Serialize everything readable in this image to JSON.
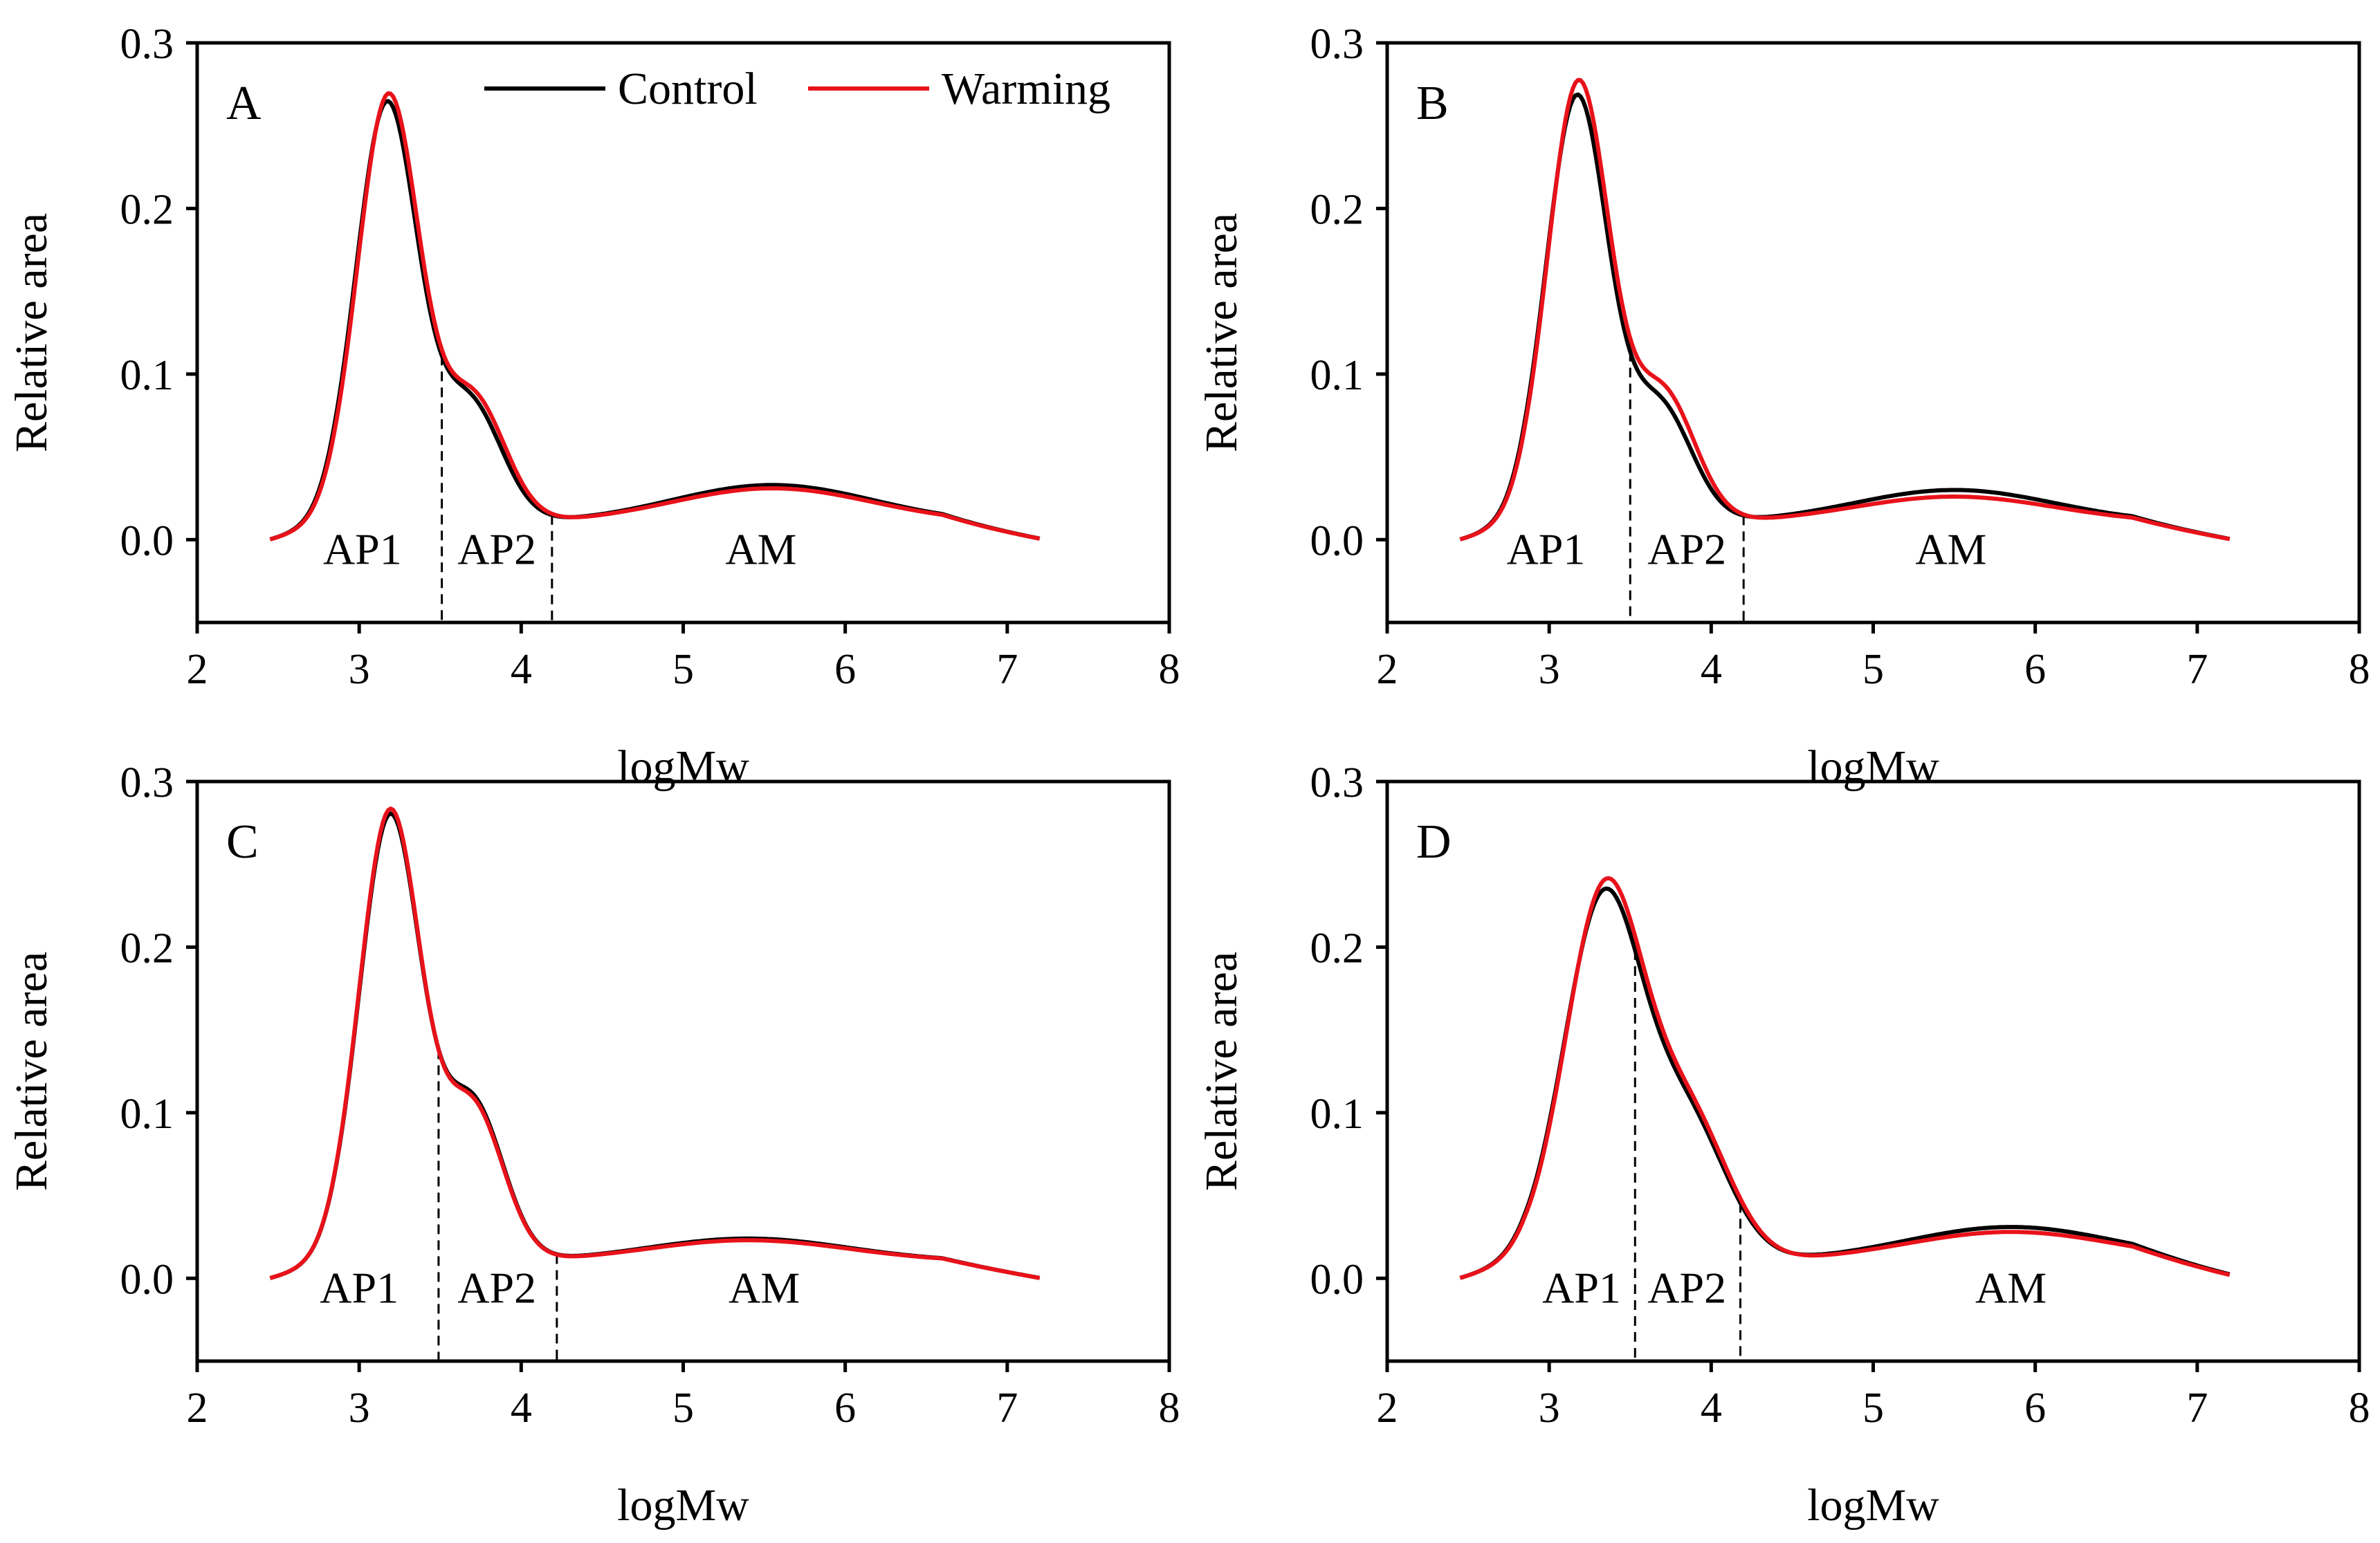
{
  "colors": {
    "control": "#000000",
    "warming": "#e8121a"
  },
  "legend": {
    "control_label": "Control",
    "warming_label": "Warming"
  },
  "chart_data": [
    {
      "type": "line",
      "panel_label": "A",
      "xlabel": "logMw",
      "ylabel": "Relative area",
      "xlim": [
        2,
        8
      ],
      "ylim": [
        -0.05,
        0.3
      ],
      "xticks": [
        2,
        3,
        4,
        5,
        6,
        7,
        8
      ],
      "yticks": [
        0.0,
        0.1,
        0.2,
        0.3
      ],
      "dividers": [
        3.51,
        4.19
      ],
      "regions": [
        {
          "label": "AP1",
          "x": 3.02
        },
        {
          "label": "AP2",
          "x": 3.85
        },
        {
          "label": "AM",
          "x": 5.48
        }
      ],
      "series": [
        {
          "name": "Control",
          "peak": {
            "center": 3.17,
            "height": 0.252,
            "sigma": 0.19
          },
          "shoulder": {
            "center": 3.68,
            "height": 0.072,
            "sigma": 0.2
          },
          "tail": {
            "center": 5.55,
            "height": 0.023,
            "sigma": 0.62
          },
          "x": [
            2.45,
            7.2
          ]
        },
        {
          "name": "Warming",
          "peak": {
            "center": 3.18,
            "height": 0.257,
            "sigma": 0.19
          },
          "shoulder": {
            "center": 3.7,
            "height": 0.075,
            "sigma": 0.2
          },
          "tail": {
            "center": 5.55,
            "height": 0.021,
            "sigma": 0.62
          },
          "x": [
            2.45,
            7.2
          ]
        }
      ]
    },
    {
      "type": "line",
      "panel_label": "B",
      "xlabel": "logMw",
      "ylabel": "Relative area",
      "xlim": [
        2,
        8
      ],
      "ylim": [
        -0.05,
        0.3
      ],
      "xticks": [
        2,
        3,
        4,
        5,
        6,
        7,
        8
      ],
      "yticks": [
        0.0,
        0.1,
        0.2,
        0.3
      ],
      "dividers": [
        3.5,
        4.2
      ],
      "regions": [
        {
          "label": "AP1",
          "x": 2.98
        },
        {
          "label": "AP2",
          "x": 3.85
        },
        {
          "label": "AM",
          "x": 5.48
        }
      ],
      "series": [
        {
          "name": "Control",
          "peak": {
            "center": 3.17,
            "height": 0.256,
            "sigma": 0.19
          },
          "shoulder": {
            "center": 3.68,
            "height": 0.07,
            "sigma": 0.2
          },
          "tail": {
            "center": 5.5,
            "height": 0.02,
            "sigma": 0.62
          },
          "x": [
            2.45,
            7.2
          ]
        },
        {
          "name": "Warming",
          "peak": {
            "center": 3.18,
            "height": 0.265,
            "sigma": 0.19
          },
          "shoulder": {
            "center": 3.7,
            "height": 0.078,
            "sigma": 0.2
          },
          "tail": {
            "center": 5.5,
            "height": 0.016,
            "sigma": 0.62
          },
          "x": [
            2.45,
            7.2
          ]
        }
      ]
    },
    {
      "type": "line",
      "panel_label": "C",
      "xlabel": "logMw",
      "ylabel": "Relative area",
      "xlim": [
        2,
        8
      ],
      "ylim": [
        -0.05,
        0.3
      ],
      "xticks": [
        2,
        3,
        4,
        5,
        6,
        7,
        8
      ],
      "yticks": [
        0.0,
        0.1,
        0.2,
        0.3
      ],
      "dividers": [
        3.49,
        4.22
      ],
      "regions": [
        {
          "label": "AP1",
          "x": 3.0
        },
        {
          "label": "AP2",
          "x": 3.85
        },
        {
          "label": "AM",
          "x": 5.5
        }
      ],
      "series": [
        {
          "name": "Control",
          "peak": {
            "center": 3.19,
            "height": 0.268,
            "sigma": 0.19
          },
          "shoulder": {
            "center": 3.7,
            "height": 0.094,
            "sigma": 0.19
          },
          "tail": {
            "center": 5.4,
            "height": 0.014,
            "sigma": 0.62
          },
          "x": [
            2.45,
            7.2
          ]
        },
        {
          "name": "Warming",
          "peak": {
            "center": 3.19,
            "height": 0.271,
            "sigma": 0.19
          },
          "shoulder": {
            "center": 3.7,
            "height": 0.092,
            "sigma": 0.19
          },
          "tail": {
            "center": 5.4,
            "height": 0.013,
            "sigma": 0.62
          },
          "x": [
            2.45,
            7.2
          ]
        }
      ]
    },
    {
      "type": "line",
      "panel_label": "D",
      "xlabel": "logMw",
      "ylabel": "Relative area",
      "xlim": [
        2,
        8
      ],
      "ylim": [
        -0.05,
        0.3
      ],
      "xticks": [
        2,
        3,
        4,
        5,
        6,
        7,
        8
      ],
      "yticks": [
        0.0,
        0.1,
        0.2,
        0.3
      ],
      "dividers": [
        3.53,
        4.18
      ],
      "regions": [
        {
          "label": "AP1",
          "x": 3.2
        },
        {
          "label": "AP2",
          "x": 3.85
        },
        {
          "label": "AM",
          "x": 5.85
        }
      ],
      "series": [
        {
          "name": "Control",
          "peak": {
            "center": 3.33,
            "height": 0.215,
            "sigma": 0.24
          },
          "shoulder": {
            "center": 3.85,
            "height": 0.082,
            "sigma": 0.25
          },
          "tail": {
            "center": 5.85,
            "height": 0.021,
            "sigma": 0.65
          },
          "x": [
            2.45,
            7.2
          ]
        },
        {
          "name": "Warming",
          "peak": {
            "center": 3.34,
            "height": 0.221,
            "sigma": 0.24
          },
          "shoulder": {
            "center": 3.86,
            "height": 0.084,
            "sigma": 0.25
          },
          "tail": {
            "center": 5.85,
            "height": 0.018,
            "sigma": 0.65
          },
          "x": [
            2.45,
            7.2
          ]
        }
      ]
    }
  ]
}
